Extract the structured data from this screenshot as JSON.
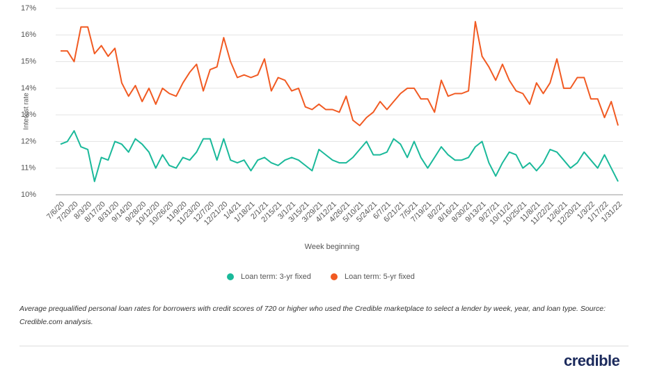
{
  "chart_data": {
    "type": "line",
    "y_label": "Interest rate",
    "x_label": "Week beginning",
    "caption": "Average prequalified personal loan rates for borrowers with credit scores of 720 or higher who used the Credible marketplace to select a lender by week, year, and loan type. Source: Credible.com analysis.",
    "logo": "credible",
    "categories": [
      "7/6/20",
      null,
      "7/20/20",
      null,
      "8/3/20",
      null,
      "8/17/20",
      null,
      "8/31/20",
      null,
      "9/14/20",
      null,
      "9/28/20",
      null,
      "10/12/20",
      null,
      "10/26/20",
      null,
      "11/9/20",
      null,
      "11/23/20",
      null,
      "12/7/20",
      null,
      "12/21/20",
      null,
      "1/4/21",
      null,
      "1/18/21",
      null,
      "2/1/21",
      null,
      "2/15/21",
      null,
      "3/1/21",
      null,
      "3/15/21",
      null,
      "3/29/21",
      null,
      "4/12/21",
      null,
      "4/26/21",
      null,
      "5/10/21",
      null,
      "5/24/21",
      null,
      "6/7/21",
      null,
      "6/21/21",
      null,
      "7/5/21",
      null,
      "7/19/21",
      null,
      "8/2/21",
      null,
      "8/16/21",
      null,
      "8/30/21",
      null,
      "9/13/21",
      null,
      "9/27/21",
      null,
      "10/11/21",
      null,
      "10/25/21",
      null,
      "11/8/21",
      null,
      "11/22/21",
      null,
      "12/6/21",
      null,
      "12/20/21",
      null,
      "1/3/22",
      null,
      "1/17/22",
      null,
      "1/31/22"
    ],
    "series": [
      {
        "name": "Loan term: 3-yr fixed",
        "color": "#1ab99a",
        "values": [
          11.9,
          12.0,
          12.4,
          11.8,
          11.7,
          10.5,
          11.4,
          11.3,
          12.0,
          11.9,
          11.6,
          12.1,
          11.9,
          11.6,
          11.0,
          11.5,
          11.1,
          11.0,
          11.4,
          11.3,
          11.6,
          12.1,
          12.1,
          11.3,
          12.1,
          11.3,
          11.2,
          11.3,
          10.9,
          11.3,
          11.4,
          11.2,
          11.1,
          11.3,
          11.4,
          11.3,
          11.1,
          10.9,
          11.7,
          11.5,
          11.3,
          11.2,
          11.2,
          11.4,
          11.7,
          12.0,
          11.5,
          11.5,
          11.6,
          12.1,
          11.9,
          11.4,
          12.0,
          11.4,
          11.0,
          11.4,
          11.8,
          11.5,
          11.3,
          11.3,
          11.4,
          11.8,
          12.0,
          11.2,
          10.7,
          11.2,
          11.6,
          11.5,
          11.0,
          11.2,
          10.9,
          11.2,
          11.7,
          11.6,
          11.3,
          11.0,
          11.2,
          11.6,
          11.3,
          11.0,
          11.5,
          11.0,
          10.5
        ]
      },
      {
        "name": "Loan term: 5-yr fixed",
        "color": "#f15a22",
        "values": [
          15.4,
          15.4,
          15.0,
          16.3,
          16.3,
          15.3,
          15.6,
          15.2,
          15.5,
          14.2,
          13.7,
          14.1,
          13.5,
          14.0,
          13.4,
          14.0,
          13.8,
          13.7,
          14.2,
          14.6,
          14.9,
          13.9,
          14.7,
          14.8,
          15.9,
          15.0,
          14.4,
          14.5,
          14.4,
          14.5,
          15.1,
          13.9,
          14.4,
          14.3,
          13.9,
          14.0,
          13.3,
          13.2,
          13.4,
          13.2,
          13.2,
          13.1,
          13.7,
          12.8,
          12.6,
          12.9,
          13.1,
          13.5,
          13.2,
          13.5,
          13.8,
          14.0,
          14.0,
          13.6,
          13.6,
          13.1,
          14.3,
          13.7,
          13.8,
          13.8,
          13.9,
          16.5,
          15.2,
          14.8,
          14.3,
          14.9,
          14.3,
          13.9,
          13.8,
          13.4,
          14.2,
          13.8,
          14.2,
          15.1,
          14.0,
          14.0,
          14.4,
          14.4,
          13.6,
          13.6,
          12.9,
          13.5,
          12.6
        ]
      }
    ],
    "ylim": [
      10,
      17
    ],
    "yticks": [
      {
        "value": 10,
        "label": "10%"
      },
      {
        "value": 11,
        "label": "11%"
      },
      {
        "value": 12,
        "label": "12%"
      },
      {
        "value": 13,
        "label": "13%"
      },
      {
        "value": 14,
        "label": "14%"
      },
      {
        "value": 15,
        "label": "15%"
      },
      {
        "value": 16,
        "label": "16%"
      },
      {
        "value": 17,
        "label": "17%"
      }
    ],
    "grid": true
  }
}
